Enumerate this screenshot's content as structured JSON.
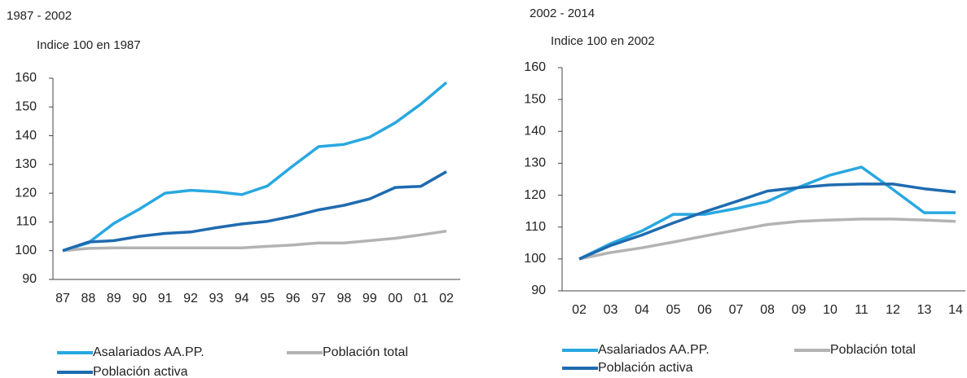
{
  "chart_data": [
    {
      "type": "line",
      "title": "1987 - 2002",
      "subtitle": "Indice 100 en 1987",
      "categories": [
        "87",
        "88",
        "89",
        "90",
        "91",
        "92",
        "93",
        "94",
        "95",
        "96",
        "97",
        "98",
        "99",
        "00",
        "01",
        "02"
      ],
      "ylim": [
        90,
        160
      ],
      "yticks": [
        90,
        100,
        110,
        120,
        130,
        140,
        150,
        160
      ],
      "series": [
        {
          "name": "Asalariados AA.PP.",
          "color": "#29a8e0",
          "values": [
            100,
            102.7,
            109.5,
            114.5,
            120,
            121,
            120.5,
            119.5,
            122.5,
            129.5,
            136.2,
            137,
            139.5,
            144.5,
            151,
            158.5
          ]
        },
        {
          "name": "Población total",
          "color": "#b3b3b3",
          "values": [
            100,
            100.8,
            101,
            101,
            101,
            101,
            101,
            101,
            101.5,
            102,
            102.7,
            102.7,
            103.5,
            104.3,
            105.5,
            106.8
          ]
        },
        {
          "name": "Población activa",
          "color": "#1f6bb0",
          "values": [
            100,
            103,
            103.5,
            105,
            106,
            106.5,
            108,
            109.3,
            110.2,
            112,
            114.2,
            115.8,
            118,
            122,
            122.4,
            127.5
          ]
        }
      ]
    },
    {
      "type": "line",
      "title": "2002 - 2014",
      "subtitle": "Indice 100 en 2002",
      "categories": [
        "02",
        "03",
        "04",
        "05",
        "06",
        "07",
        "08",
        "09",
        "10",
        "11",
        "12",
        "13",
        "14"
      ],
      "ylim": [
        90,
        160
      ],
      "yticks": [
        90,
        100,
        110,
        120,
        130,
        140,
        150,
        160
      ],
      "series": [
        {
          "name": "Asalariados AA.PP.",
          "color": "#29a8e0",
          "values": [
            100,
            104.8,
            108.8,
            114,
            114,
            115.8,
            118,
            122.5,
            126.3,
            128.8,
            121.8,
            114.5,
            114.5
          ]
        },
        {
          "name": "Población total",
          "color": "#b3b3b3",
          "values": [
            100,
            102,
            103.5,
            105.3,
            107.2,
            109,
            110.8,
            111.8,
            112.2,
            112.5,
            112.5,
            112.2,
            111.8
          ]
        },
        {
          "name": "Población activa",
          "color": "#1f6bb0",
          "values": [
            100,
            104.2,
            107.5,
            111.3,
            114.8,
            118,
            121.3,
            122.4,
            123.2,
            123.5,
            123.5,
            122,
            121
          ]
        }
      ]
    }
  ]
}
